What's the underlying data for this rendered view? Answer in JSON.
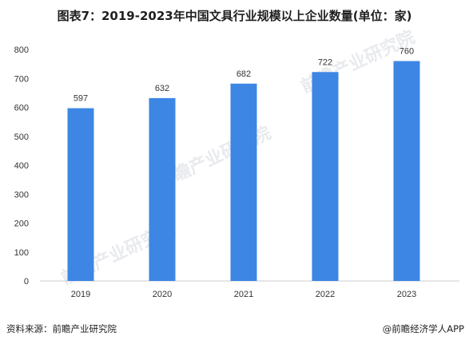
{
  "title": "图表7：2019-2023年中国文具行业规模以上企业数量(单位：家)",
  "source": "资料来源：前瞻产业研究院",
  "brand": "@前瞻经济学人APP",
  "watermarks": [
    "前瞻产业研究院",
    "前瞻产业研究院",
    "前瞻产业研究院"
  ],
  "colors": {
    "bar": "#3d86e4",
    "axis": "#cccccc",
    "text": "#333333"
  },
  "chart_data": {
    "type": "bar",
    "title": "图表7：2019-2023年中国文具行业规模以上企业数量(单位：家)",
    "categories": [
      "2019",
      "2020",
      "2021",
      "2022",
      "2023"
    ],
    "values": [
      597,
      632,
      682,
      722,
      760
    ],
    "ylim": [
      0,
      800
    ],
    "yticks": [
      0,
      100,
      200,
      300,
      400,
      500,
      600,
      700,
      800
    ],
    "grid": false,
    "legend": "none",
    "data_labels": true,
    "xlabel": "",
    "ylabel": ""
  }
}
